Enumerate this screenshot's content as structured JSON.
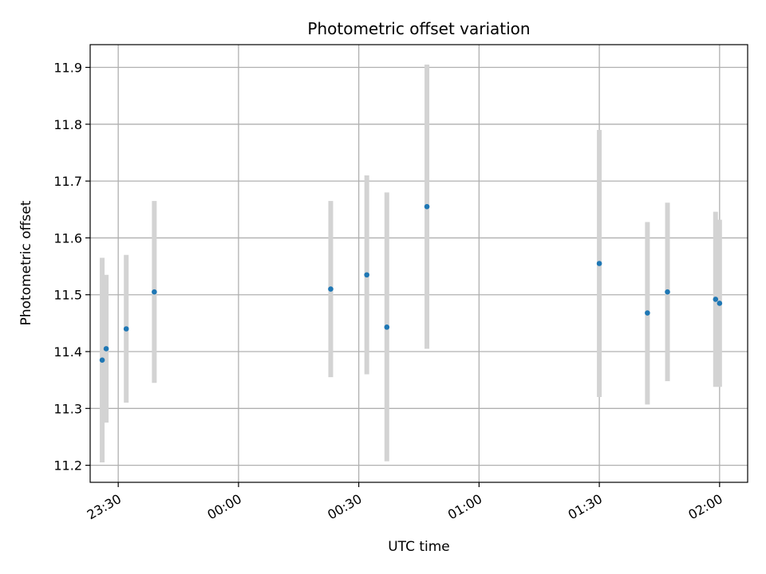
{
  "chart_data": {
    "type": "scatter",
    "title": "Photometric offset variation",
    "xlabel": "UTC time",
    "ylabel": "Photometric offset",
    "x_ticks": [
      "23:30",
      "00:00",
      "00:30",
      "01:00",
      "01:30",
      "02:00"
    ],
    "y_ticks": [
      "11.2",
      "11.3",
      "11.4",
      "11.5",
      "11.6",
      "11.7",
      "11.8",
      "11.9"
    ],
    "xlim": [
      "23:23",
      "02:07"
    ],
    "ylim": [
      11.17,
      11.94
    ],
    "grid": true,
    "series": [
      {
        "marker_color": "#1f77b4",
        "errorbar_color": "#d3d3d3",
        "points": [
          {
            "x": "23:26",
            "y": 11.385,
            "yerr_low": 11.205,
            "yerr_high": 11.565
          },
          {
            "x": "23:27",
            "y": 11.405,
            "yerr_low": 11.275,
            "yerr_high": 11.535
          },
          {
            "x": "23:32",
            "y": 11.44,
            "yerr_low": 11.31,
            "yerr_high": 11.57
          },
          {
            "x": "23:39",
            "y": 11.505,
            "yerr_low": 11.345,
            "yerr_high": 11.665
          },
          {
            "x": "00:23",
            "y": 11.51,
            "yerr_low": 11.355,
            "yerr_high": 11.665
          },
          {
            "x": "00:32",
            "y": 11.535,
            "yerr_low": 11.36,
            "yerr_high": 11.71
          },
          {
            "x": "00:37",
            "y": 11.443,
            "yerr_low": 11.207,
            "yerr_high": 11.68
          },
          {
            "x": "00:47",
            "y": 11.655,
            "yerr_low": 11.405,
            "yerr_high": 11.905
          },
          {
            "x": "01:30",
            "y": 11.555,
            "yerr_low": 11.32,
            "yerr_high": 11.79
          },
          {
            "x": "01:42",
            "y": 11.468,
            "yerr_low": 11.307,
            "yerr_high": 11.628
          },
          {
            "x": "01:47",
            "y": 11.505,
            "yerr_low": 11.348,
            "yerr_high": 11.662
          },
          {
            "x": "01:59",
            "y": 11.492,
            "yerr_low": 11.338,
            "yerr_high": 11.646
          },
          {
            "x": "02:00",
            "y": 11.485,
            "yerr_low": 11.338,
            "yerr_high": 11.632
          }
        ]
      }
    ]
  }
}
